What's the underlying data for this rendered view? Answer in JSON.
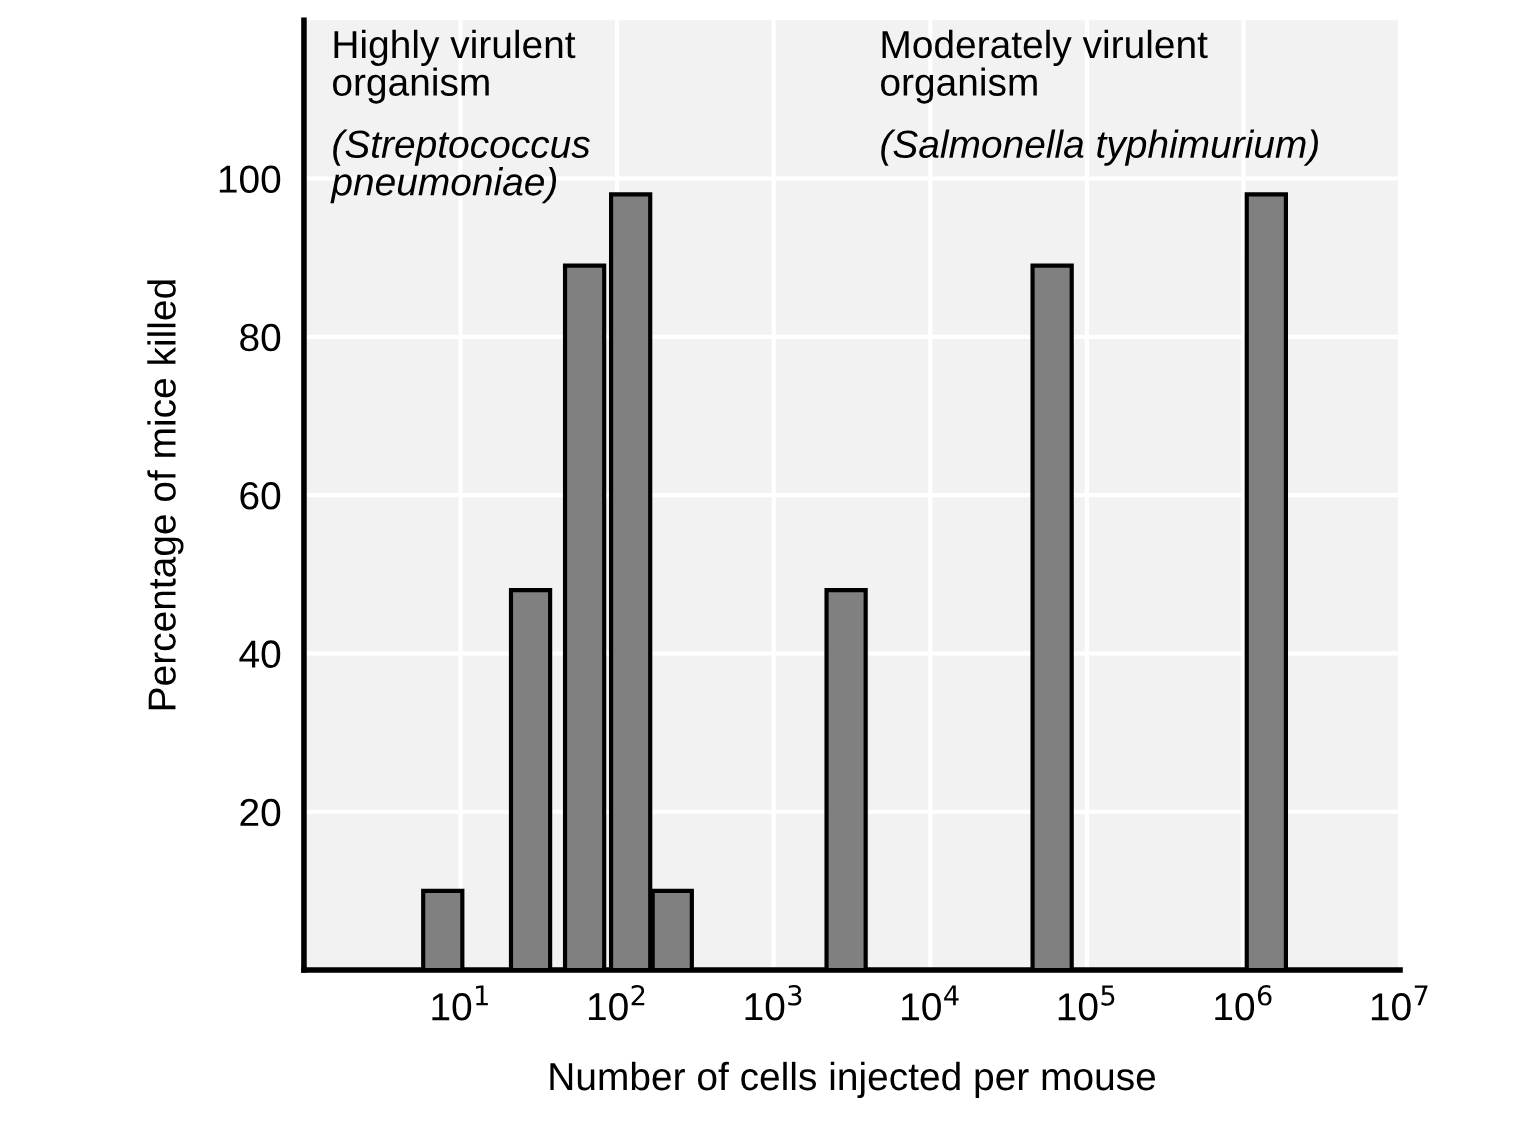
{
  "chart_data": {
    "type": "bar",
    "xlabel": "Number of cells injected per mouse",
    "ylabel": "Percentage of mice killed",
    "x": [
      7.7,
      28,
      62,
      122,
      225,
      2900,
      60000,
      1400000
    ],
    "values": [
      10,
      48,
      89,
      98,
      10,
      48,
      89,
      98
    ],
    "color": "#808080",
    "log": "x",
    "xlim": [
      1,
      10000000
    ],
    "xticks": [
      {
        "value": 10,
        "label": "10$^{1}$"
      },
      {
        "value": 100,
        "label": "10$^{2}$"
      },
      {
        "value": 1000,
        "label": "10$^{3}$"
      },
      {
        "value": 10000,
        "label": "10$^{4}$"
      },
      {
        "value": 100000,
        "label": "10$^{5}$"
      },
      {
        "value": 1000000,
        "label": "10$^{6}$"
      },
      {
        "value": 10000000,
        "label": "10$^{7}$"
      }
    ],
    "ylim": [
      0,
      120
    ],
    "yticks": [
      20,
      40,
      60,
      80,
      100
    ],
    "grid": true,
    "annotations": [
      "Highly virulent\norganism",
      "(Streptococcus\npneumoniae)",
      "Moderately virulent\norganism",
      "(Salmonella typhimurium)"
    ]
  }
}
